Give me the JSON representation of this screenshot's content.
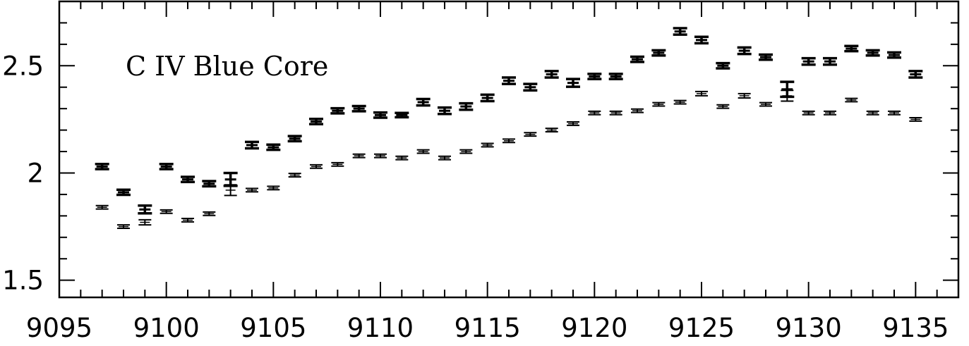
{
  "chart_data": {
    "type": "scatter",
    "title": "",
    "xlabel": "",
    "ylabel": "",
    "annotation": "C IV Blue Core",
    "xlim": [
      9095,
      9137
    ],
    "ylim": [
      1.42,
      2.8
    ],
    "x_ticks": [
      9095,
      9100,
      9105,
      9110,
      9115,
      9120,
      9125,
      9130,
      9135
    ],
    "y_ticks": [
      1.5,
      2,
      2.5
    ],
    "x_tick_labels": [
      "9095",
      "9100",
      "9105",
      "9110",
      "9115",
      "9120",
      "9125",
      "9130",
      "9135"
    ],
    "y_tick_labels": [
      "1.5",
      "2",
      "2.5"
    ],
    "grid": false,
    "series": [
      {
        "marker": "errorbar-bold",
        "points": [
          {
            "x": 9097,
            "y": 2.03,
            "err": 0.012
          },
          {
            "x": 9098,
            "y": 1.91,
            "err": 0.012
          },
          {
            "x": 9099,
            "y": 1.83,
            "err": 0.018
          },
          {
            "x": 9100,
            "y": 2.03,
            "err": 0.012
          },
          {
            "x": 9101,
            "y": 1.97,
            "err": 0.012
          },
          {
            "x": 9102,
            "y": 1.95,
            "err": 0.012
          },
          {
            "x": 9103,
            "y": 1.97,
            "err": 0.03
          },
          {
            "x": 9104,
            "y": 2.13,
            "err": 0.015
          },
          {
            "x": 9105,
            "y": 2.12,
            "err": 0.012
          },
          {
            "x": 9106,
            "y": 2.16,
            "err": 0.012
          },
          {
            "x": 9107,
            "y": 2.24,
            "err": 0.012
          },
          {
            "x": 9108,
            "y": 2.29,
            "err": 0.012
          },
          {
            "x": 9109,
            "y": 2.3,
            "err": 0.012
          },
          {
            "x": 9110,
            "y": 2.27,
            "err": 0.012
          },
          {
            "x": 9111,
            "y": 2.27,
            "err": 0.01
          },
          {
            "x": 9112,
            "y": 2.33,
            "err": 0.015
          },
          {
            "x": 9113,
            "y": 2.29,
            "err": 0.015
          },
          {
            "x": 9114,
            "y": 2.31,
            "err": 0.015
          },
          {
            "x": 9115,
            "y": 2.35,
            "err": 0.015
          },
          {
            "x": 9116,
            "y": 2.43,
            "err": 0.015
          },
          {
            "x": 9117,
            "y": 2.4,
            "err": 0.015
          },
          {
            "x": 9118,
            "y": 2.46,
            "err": 0.015
          },
          {
            "x": 9119,
            "y": 2.42,
            "err": 0.018
          },
          {
            "x": 9120,
            "y": 2.45,
            "err": 0.012
          },
          {
            "x": 9121,
            "y": 2.45,
            "err": 0.012
          },
          {
            "x": 9122,
            "y": 2.53,
            "err": 0.012
          },
          {
            "x": 9123,
            "y": 2.56,
            "err": 0.012
          },
          {
            "x": 9124,
            "y": 2.66,
            "err": 0.015
          },
          {
            "x": 9125,
            "y": 2.62,
            "err": 0.015
          },
          {
            "x": 9126,
            "y": 2.5,
            "err": 0.012
          },
          {
            "x": 9127,
            "y": 2.57,
            "err": 0.015
          },
          {
            "x": 9128,
            "y": 2.54,
            "err": 0.012
          },
          {
            "x": 9129,
            "y": 2.39,
            "err": 0.035
          },
          {
            "x": 9130,
            "y": 2.52,
            "err": 0.015
          },
          {
            "x": 9131,
            "y": 2.52,
            "err": 0.015
          },
          {
            "x": 9132,
            "y": 2.58,
            "err": 0.012
          },
          {
            "x": 9133,
            "y": 2.56,
            "err": 0.012
          },
          {
            "x": 9134,
            "y": 2.55,
            "err": 0.012
          },
          {
            "x": 9135,
            "y": 2.46,
            "err": 0.015
          }
        ]
      },
      {
        "marker": "errorbar-thin",
        "points": [
          {
            "x": 9097,
            "y": 1.84,
            "err": 0.008
          },
          {
            "x": 9098,
            "y": 1.75,
            "err": 0.008
          },
          {
            "x": 9099,
            "y": 1.77,
            "err": 0.012
          },
          {
            "x": 9100,
            "y": 1.82,
            "err": 0.008
          },
          {
            "x": 9101,
            "y": 1.78,
            "err": 0.008
          },
          {
            "x": 9102,
            "y": 1.81,
            "err": 0.008
          },
          {
            "x": 9103,
            "y": 1.92,
            "err": 0.025
          },
          {
            "x": 9104,
            "y": 1.92,
            "err": 0.008
          },
          {
            "x": 9105,
            "y": 1.93,
            "err": 0.008
          },
          {
            "x": 9106,
            "y": 1.99,
            "err": 0.008
          },
          {
            "x": 9107,
            "y": 2.03,
            "err": 0.008
          },
          {
            "x": 9108,
            "y": 2.04,
            "err": 0.008
          },
          {
            "x": 9109,
            "y": 2.08,
            "err": 0.008
          },
          {
            "x": 9110,
            "y": 2.08,
            "err": 0.008
          },
          {
            "x": 9111,
            "y": 2.07,
            "err": 0.008
          },
          {
            "x": 9112,
            "y": 2.1,
            "err": 0.008
          },
          {
            "x": 9113,
            "y": 2.07,
            "err": 0.008
          },
          {
            "x": 9114,
            "y": 2.1,
            "err": 0.008
          },
          {
            "x": 9115,
            "y": 2.13,
            "err": 0.008
          },
          {
            "x": 9116,
            "y": 2.15,
            "err": 0.008
          },
          {
            "x": 9117,
            "y": 2.18,
            "err": 0.008
          },
          {
            "x": 9118,
            "y": 2.2,
            "err": 0.008
          },
          {
            "x": 9119,
            "y": 2.23,
            "err": 0.008
          },
          {
            "x": 9120,
            "y": 2.28,
            "err": 0.008
          },
          {
            "x": 9121,
            "y": 2.28,
            "err": 0.008
          },
          {
            "x": 9122,
            "y": 2.29,
            "err": 0.008
          },
          {
            "x": 9123,
            "y": 2.32,
            "err": 0.008
          },
          {
            "x": 9124,
            "y": 2.33,
            "err": 0.008
          },
          {
            "x": 9125,
            "y": 2.37,
            "err": 0.01
          },
          {
            "x": 9126,
            "y": 2.31,
            "err": 0.008
          },
          {
            "x": 9127,
            "y": 2.36,
            "err": 0.01
          },
          {
            "x": 9128,
            "y": 2.32,
            "err": 0.008
          },
          {
            "x": 9129,
            "y": 2.36,
            "err": 0.025
          },
          {
            "x": 9130,
            "y": 2.28,
            "err": 0.008
          },
          {
            "x": 9131,
            "y": 2.28,
            "err": 0.008
          },
          {
            "x": 9132,
            "y": 2.34,
            "err": 0.008
          },
          {
            "x": 9133,
            "y": 2.28,
            "err": 0.008
          },
          {
            "x": 9134,
            "y": 2.28,
            "err": 0.008
          },
          {
            "x": 9135,
            "y": 2.25,
            "err": 0.008
          }
        ]
      }
    ]
  }
}
